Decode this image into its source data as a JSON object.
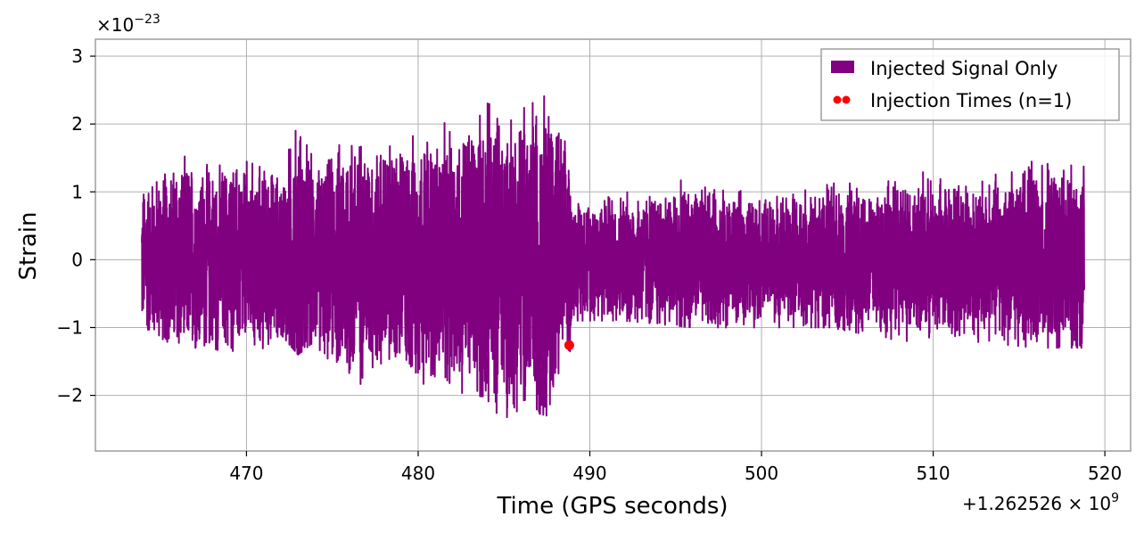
{
  "chart_data": {
    "type": "line",
    "title": "",
    "xlabel": "Time (GPS seconds)",
    "ylabel": "Strain",
    "x_offset_label": "+1.262526 × 10",
    "x_offset_exponent": "9",
    "y_scale_label": "×10",
    "y_scale_exponent": "−23",
    "xlim": [
      461.2,
      521.5
    ],
    "ylim": [
      -2.82,
      3.25
    ],
    "x_ticks": [
      470,
      480,
      490,
      500,
      510,
      520
    ],
    "x_tick_labels": [
      "470",
      "480",
      "490",
      "500",
      "510",
      "520"
    ],
    "y_ticks": [
      -2,
      -1,
      0,
      1,
      2,
      3
    ],
    "y_tick_labels": [
      "−2",
      "−1",
      "0",
      "1",
      "2",
      "3"
    ],
    "grid": true,
    "legend_position": "top-right",
    "series": [
      {
        "name": "Injected Signal Only",
        "color": "#800080",
        "kind": "line",
        "x_start": 463.9,
        "x_end": 518.8,
        "envelope": [
          [
            463.9,
            1.2,
            -1.0
          ],
          [
            466.0,
            1.6,
            -1.3
          ],
          [
            468.0,
            1.5,
            -1.3
          ],
          [
            470.0,
            1.6,
            -1.5
          ],
          [
            472.0,
            1.4,
            -1.1
          ],
          [
            473.0,
            2.3,
            -1.4
          ],
          [
            474.0,
            1.5,
            -1.2
          ],
          [
            476.0,
            1.9,
            -2.2
          ],
          [
            478.0,
            1.8,
            -1.6
          ],
          [
            480.0,
            2.0,
            -1.8
          ],
          [
            482.0,
            2.1,
            -2.0
          ],
          [
            484.0,
            2.4,
            -2.5
          ],
          [
            486.0,
            2.5,
            -2.2
          ],
          [
            487.5,
            2.9,
            -2.3
          ],
          [
            488.8,
            1.6,
            -1.7
          ],
          [
            489.0,
            1.0,
            -0.9
          ],
          [
            492.0,
            1.1,
            -0.9
          ],
          [
            496.0,
            1.2,
            -1.0
          ],
          [
            500.0,
            1.0,
            -1.0
          ],
          [
            504.0,
            1.2,
            -1.0
          ],
          [
            508.0,
            1.3,
            -1.2
          ],
          [
            512.0,
            1.3,
            -1.2
          ],
          [
            516.0,
            1.5,
            -1.3
          ],
          [
            518.8,
            1.5,
            -1.3
          ]
        ]
      },
      {
        "name": "Injection Times (n=1)",
        "color": "#ff0000",
        "kind": "scatter",
        "points": [
          [
            488.8,
            -1.26
          ]
        ]
      }
    ]
  }
}
